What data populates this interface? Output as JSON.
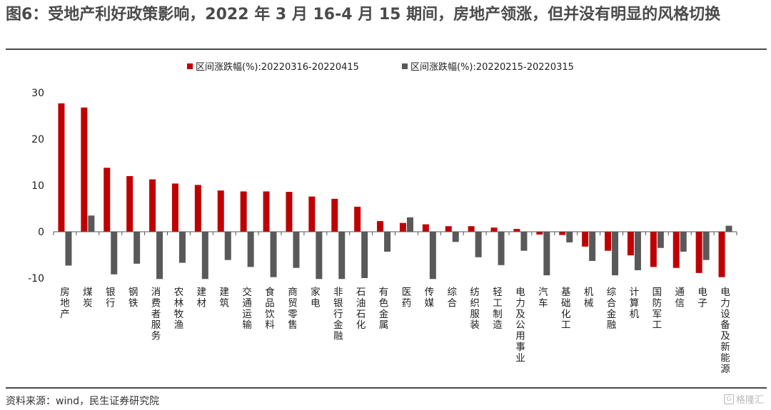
{
  "title": "图6：受地产利好政策影响，2022 年 3 月 16-4 月 15 期间，房地产领涨，但并没有明显的风格切换",
  "source": "资料来源：wind，民生证券研究院",
  "watermark": {
    "icon": "G",
    "text": "格隆汇"
  },
  "chart_data": {
    "type": "bar",
    "categories": [
      "房地产",
      "煤炭",
      "银行",
      "钢铁",
      "消费者服务",
      "农林牧渔",
      "建材",
      "建筑",
      "交通运输",
      "食品饮料",
      "商贸零售",
      "家电",
      "非银行金融",
      "石油石化",
      "有色金属",
      "医药",
      "传媒",
      "综合",
      "纺织服装",
      "轻工制造",
      "电力及公用事业",
      "汽车",
      "基础化工",
      "机械",
      "综合金融",
      "计算机",
      "国防军工",
      "通信",
      "电子",
      "电力设备及新能源"
    ],
    "series": [
      {
        "name": "区间涨跌幅(%):20220316-20220415",
        "color": "#c00000",
        "values": [
          27.7,
          26.8,
          13.8,
          12.0,
          11.3,
          10.4,
          10.1,
          8.9,
          8.7,
          8.7,
          8.6,
          7.6,
          7.1,
          5.4,
          2.3,
          1.9,
          1.6,
          1.2,
          1.2,
          0.9,
          0.6,
          -0.6,
          -0.7,
          -3.2,
          -4.1,
          -5.1,
          -7.6,
          -7.8,
          -8.9,
          -9.8
        ]
      },
      {
        "name": "区间涨跌幅(%):20220215-20220315",
        "color": "#595959",
        "values": [
          -7.3,
          3.5,
          -9.2,
          -6.9,
          -10.2,
          -6.7,
          -10.2,
          -6.1,
          -7.6,
          -9.8,
          -7.8,
          -10.2,
          -10.2,
          -10.0,
          -4.3,
          3.1,
          -10.2,
          -2.2,
          -5.5,
          -7.2,
          -4.1,
          -9.4,
          -2.3,
          -6.3,
          -9.4,
          -8.3,
          -3.5,
          -4.3,
          -6.1,
          1.3
        ]
      }
    ],
    "ylim": [
      -10,
      30
    ],
    "yticks": [
      -10,
      0,
      10,
      20,
      30
    ],
    "legend_position": "top",
    "grid": false
  }
}
